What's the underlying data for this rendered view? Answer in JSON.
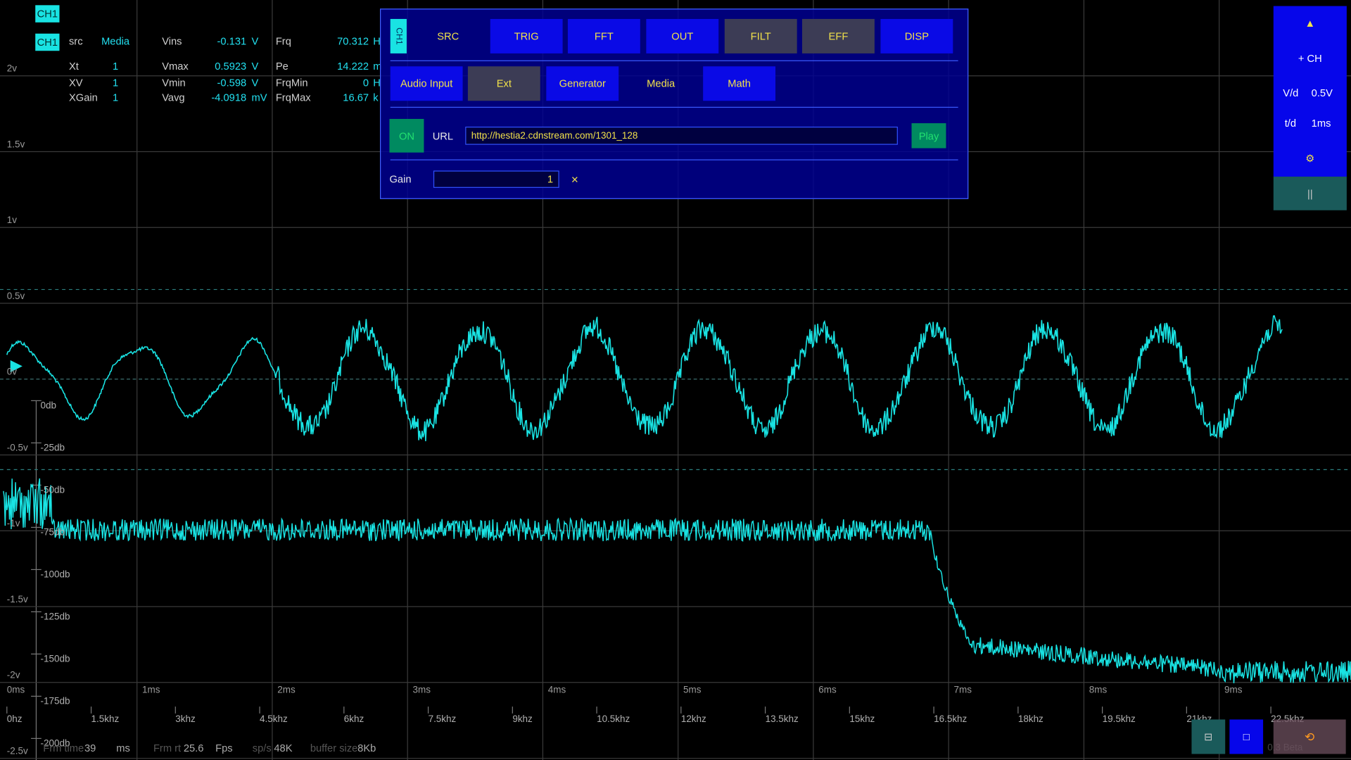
{
  "channel_badge": "CH1",
  "info": {
    "channel": "CH1",
    "rows": [
      [
        "src",
        "Media",
        "Vins",
        "-0.131",
        "V",
        "Frq",
        "70.312",
        "H"
      ],
      [
        "Xt",
        "1",
        "Vmax",
        "0.5923",
        "V",
        "Pe",
        "14.222",
        "m"
      ],
      [
        "XV",
        "1",
        "Vmin",
        "-0.598",
        "V",
        "FrqMin",
        "0",
        "H"
      ],
      [
        "XGain",
        "1",
        "Vavg",
        "-4.0918",
        "mV",
        "FrqMax",
        "16.67",
        "k"
      ]
    ]
  },
  "volt_axis": [
    "2v",
    "1.5v",
    "1v",
    "0.5v",
    "0v",
    "-0.5v",
    "-1v",
    "-1.5v",
    "-2v",
    "-2.5v"
  ],
  "time_axis": [
    "0ms",
    "1ms",
    "2ms",
    "3ms",
    "4ms",
    "5ms",
    "6ms",
    "7ms",
    "8ms",
    "9ms"
  ],
  "db_axis": [
    "0db",
    "-25db",
    "-50db",
    "-75db",
    "-100db",
    "-125db",
    "-150db",
    "-175db",
    "-200db"
  ],
  "freq_axis": [
    "0hz",
    "1.5khz",
    "3khz",
    "4.5khz",
    "6khz",
    "7.5khz",
    "9khz",
    "10.5khz",
    "12khz",
    "13.5khz",
    "15khz",
    "16.5khz",
    "18khz",
    "19.5khz",
    "21khz",
    "22.5khz"
  ],
  "status": [
    {
      "label": "Frm time",
      "value": "39",
      "unit": "ms"
    },
    {
      "label": "Frm rt",
      "value": "25.6",
      "unit": "Fps"
    },
    {
      "label": "sp/s",
      "value": "48K"
    },
    {
      "label": "buffer size",
      "value": "8Kb"
    }
  ],
  "panel": {
    "channel": "CH1",
    "tabs": [
      "SRC",
      "TRIG",
      "FFT",
      "OUT",
      "FILT",
      "EFF",
      "DISP"
    ],
    "sources": [
      "Audio Input",
      "Ext",
      "Generator",
      "Media",
      "Math"
    ],
    "on": "ON",
    "url_label": "URL",
    "url": "http://hestia2.cdnstream.com/1301_128",
    "play": "Play",
    "gain_label": "Gain",
    "gain": "1",
    "close": "×"
  },
  "side": {
    "up": "▲",
    "add_channel": "+ CH",
    "vd_label": "V/d",
    "vd": "0.5V",
    "td_label": "t/d",
    "td": "1ms",
    "settings": "⚙",
    "pause": "||"
  },
  "footer_buttons": [
    "⊟",
    "□",
    "⟲"
  ],
  "version": "0.3 Beta"
}
